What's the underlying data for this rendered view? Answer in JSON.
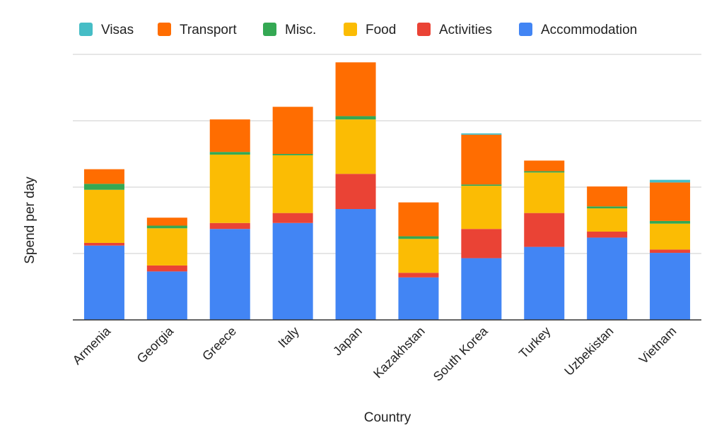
{
  "chart_data": {
    "type": "bar",
    "stacked": true,
    "xlabel": "Country",
    "ylabel": "Spend per day",
    "y_tick_labels_shown": false,
    "ylim": [
      0,
      4
    ],
    "grid": true,
    "legend_position": "top",
    "categories": [
      "Armenia",
      "Georgia",
      "Greece",
      "Italy",
      "Japan",
      "Kazakhstan",
      "South Korea",
      "Turkey",
      "Uzbekistan",
      "Vietnam"
    ],
    "legend_order": [
      "Visas",
      "Transport",
      "Misc.",
      "Food",
      "Activities",
      "Accommodation"
    ],
    "series": [
      {
        "name": "Accommodation",
        "color": "#4285F4",
        "values": [
          1.12,
          0.73,
          1.37,
          1.46,
          1.67,
          0.64,
          0.93,
          1.1,
          1.24,
          1.01
        ]
      },
      {
        "name": "Activities",
        "color": "#EA4335",
        "values": [
          0.04,
          0.09,
          0.09,
          0.15,
          0.53,
          0.07,
          0.44,
          0.51,
          0.09,
          0.05
        ]
      },
      {
        "name": "Food",
        "color": "#FBBC04",
        "values": [
          0.8,
          0.56,
          1.03,
          0.87,
          0.82,
          0.51,
          0.65,
          0.61,
          0.35,
          0.39
        ]
      },
      {
        "name": "Misc.",
        "color": "#34A853",
        "values": [
          0.09,
          0.04,
          0.04,
          0.02,
          0.05,
          0.04,
          0.02,
          0.02,
          0.03,
          0.04
        ]
      },
      {
        "name": "Transport",
        "color": "#FF6D01",
        "values": [
          0.22,
          0.12,
          0.49,
          0.71,
          0.81,
          0.51,
          0.75,
          0.16,
          0.3,
          0.58
        ]
      },
      {
        "name": "Visas",
        "color": "#46BDC6",
        "values": [
          0,
          0,
          0,
          0,
          0,
          0,
          0.02,
          0,
          0,
          0.04
        ]
      }
    ]
  }
}
